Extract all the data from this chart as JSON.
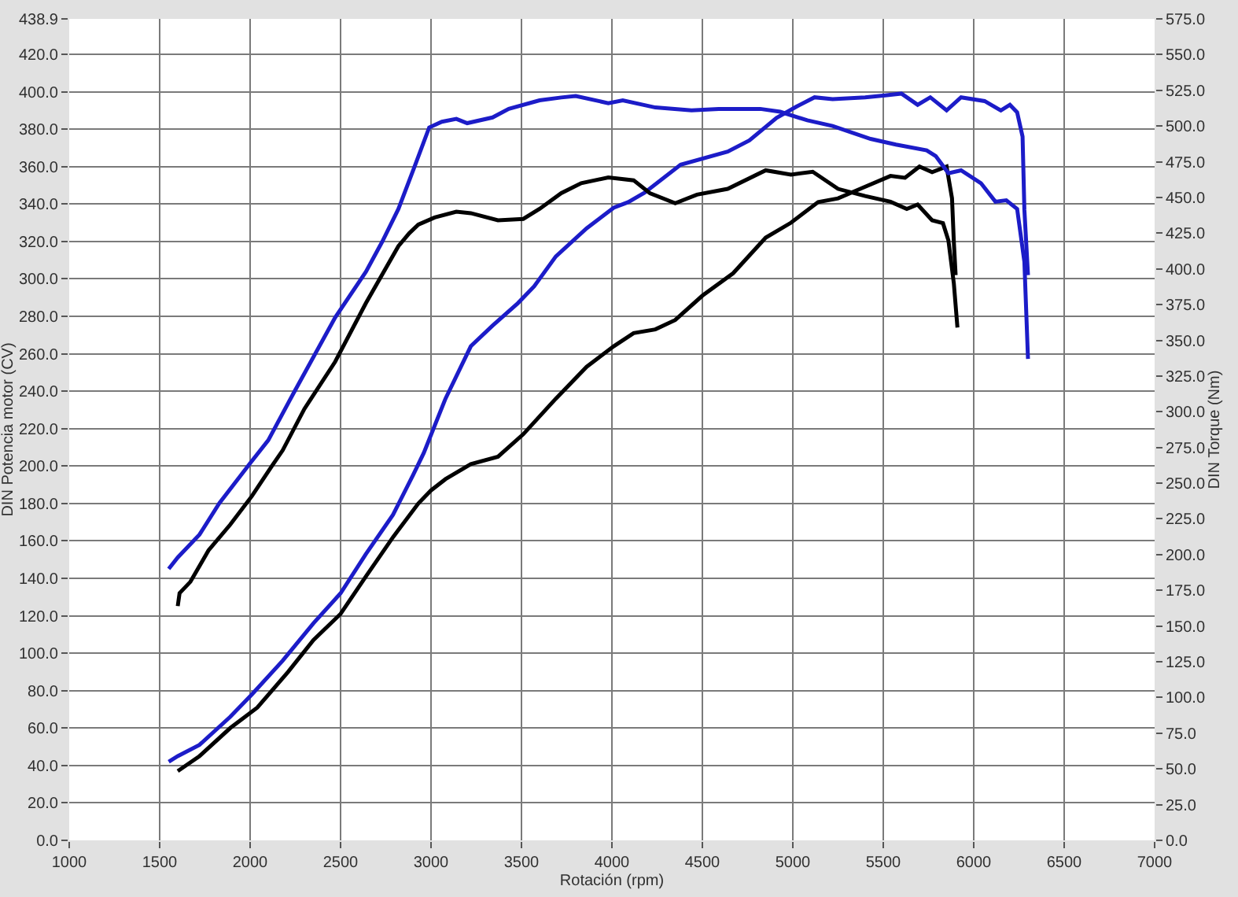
{
  "chart_data": {
    "type": "line",
    "xlabel": "Rotación (rpm)",
    "ylabel": "DIN Potencia motor (CV)",
    "y2label": "DIN Torque (Nm)",
    "xlim": [
      1000,
      7000
    ],
    "xticks": [
      1000,
      1500,
      2000,
      2500,
      3000,
      3500,
      4000,
      4500,
      5000,
      5500,
      6000,
      6500,
      7000
    ],
    "ylim": [
      0,
      438.9
    ],
    "yticks": [
      {
        "value": 0,
        "label": "0.0"
      },
      {
        "value": 20,
        "label": "20.0"
      },
      {
        "value": 40,
        "label": "40.0"
      },
      {
        "value": 60,
        "label": "60.0"
      },
      {
        "value": 80,
        "label": "80.0"
      },
      {
        "value": 100,
        "label": "100.0"
      },
      {
        "value": 120,
        "label": "120.0"
      },
      {
        "value": 140,
        "label": "140.0"
      },
      {
        "value": 160,
        "label": "160.0"
      },
      {
        "value": 180,
        "label": "180.0"
      },
      {
        "value": 200,
        "label": "200.0"
      },
      {
        "value": 220,
        "label": "220.0"
      },
      {
        "value": 240,
        "label": "240.0"
      },
      {
        "value": 260,
        "label": "260.0"
      },
      {
        "value": 280,
        "label": "280.0"
      },
      {
        "value": 300,
        "label": "300.0"
      },
      {
        "value": 320,
        "label": "320.0"
      },
      {
        "value": 340,
        "label": "340.0"
      },
      {
        "value": 360,
        "label": "360.0"
      },
      {
        "value": 380,
        "label": "380.0"
      },
      {
        "value": 400,
        "label": "400.0"
      },
      {
        "value": 420,
        "label": "420.0"
      },
      {
        "value": 438.9,
        "label": "438.9"
      }
    ],
    "y2lim": [
      0,
      575
    ],
    "y2ticks": [
      {
        "value": 0,
        "label": "0.0"
      },
      {
        "value": 25,
        "label": "25.0"
      },
      {
        "value": 50,
        "label": "50.0"
      },
      {
        "value": 75,
        "label": "75.0"
      },
      {
        "value": 100,
        "label": "100.0"
      },
      {
        "value": 125,
        "label": "125.0"
      },
      {
        "value": 150,
        "label": "150.0"
      },
      {
        "value": 175,
        "label": "175.0"
      },
      {
        "value": 200,
        "label": "200.0"
      },
      {
        "value": 225,
        "label": "225.0"
      },
      {
        "value": 250,
        "label": "250.0"
      },
      {
        "value": 275,
        "label": "275.0"
      },
      {
        "value": 300,
        "label": "300.0"
      },
      {
        "value": 325,
        "label": "325.0"
      },
      {
        "value": 350,
        "label": "350.0"
      },
      {
        "value": 375,
        "label": "375.0"
      },
      {
        "value": 400,
        "label": "400.0"
      },
      {
        "value": 425,
        "label": "425.0"
      },
      {
        "value": 450,
        "label": "450.0"
      },
      {
        "value": 475,
        "label": "475.0"
      },
      {
        "value": 500,
        "label": "500.0"
      },
      {
        "value": 525,
        "label": "525.0"
      },
      {
        "value": 550,
        "label": "550.0"
      },
      {
        "value": 575,
        "label": "575.0"
      }
    ],
    "grid": true,
    "series": [
      {
        "color": "#1c1cc8",
        "x": [
          1550,
          1600,
          1720,
          1890,
          2010,
          2180,
          2350,
          2500,
          2640,
          2790,
          2900,
          2960,
          3080,
          3220,
          3340,
          3480,
          3570,
          3690,
          3860,
          4010,
          4090,
          4180,
          4380,
          4640,
          4760,
          4910,
          5020,
          5120,
          5220,
          5400,
          5510,
          5600,
          5690,
          5760,
          5850,
          5930,
          6060,
          6150,
          6200,
          6240,
          6270,
          6280,
          6300
        ],
        "values": [
          42,
          45,
          51,
          66,
          78,
          96,
          116,
          132,
          153,
          174,
          195,
          207,
          236,
          264,
          275,
          287,
          296,
          312,
          327,
          338,
          341,
          346,
          361,
          368,
          374,
          386,
          392,
          397,
          396,
          397,
          398,
          399,
          393,
          397,
          390,
          397,
          395,
          390,
          393,
          389,
          376,
          337,
          302
        ]
      },
      {
        "color": "#1c1cc8",
        "axis": "y2",
        "x": [
          1550,
          1600,
          1720,
          1830,
          2000,
          2100,
          2240,
          2470,
          2640,
          2730,
          2820,
          2910,
          2990,
          3060,
          3140,
          3200,
          3340,
          3430,
          3600,
          3720,
          3800,
          3980,
          4060,
          4240,
          4440,
          4590,
          4820,
          4930,
          5080,
          5220,
          5430,
          5570,
          5740,
          5790,
          5860,
          5930,
          6040,
          6120,
          6180,
          6240,
          6280,
          6300
        ],
        "values": [
          190,
          198,
          214,
          236,
          264,
          280,
          313,
          366,
          398,
          419,
          442,
          472,
          499,
          503,
          505,
          502,
          506,
          512,
          518,
          520,
          521,
          516,
          518,
          513,
          511,
          512,
          512,
          510,
          504,
          500,
          491,
          487,
          483,
          479,
          467,
          469,
          460,
          447,
          448,
          442,
          405,
          337
        ]
      },
      {
        "color": "#000000",
        "x": [
          1600,
          1720,
          1890,
          2040,
          2210,
          2350,
          2500,
          2640,
          2790,
          2930,
          3000,
          3080,
          3220,
          3370,
          3510,
          3690,
          3860,
          4010,
          4120,
          4240,
          4350,
          4500,
          4670,
          4850,
          4990,
          5140,
          5250,
          5370,
          5540,
          5620,
          5700,
          5770,
          5850,
          5880,
          5890,
          5900
        ],
        "values": [
          37,
          45,
          60,
          71,
          90,
          107,
          121,
          141,
          162,
          180,
          187,
          193,
          201,
          205,
          217,
          236,
          253,
          264,
          271,
          273,
          278,
          291,
          303,
          322,
          330,
          341,
          343,
          348,
          355,
          354,
          360,
          357,
          360,
          343,
          320,
          302
        ]
      },
      {
        "color": "#000000",
        "axis": "y2",
        "x": [
          1600,
          1610,
          1670,
          1770,
          1890,
          2010,
          2120,
          2180,
          2300,
          2470,
          2640,
          2820,
          2880,
          2930,
          3020,
          3140,
          3220,
          3370,
          3510,
          3600,
          3720,
          3830,
          3980,
          4120,
          4210,
          4350,
          4470,
          4640,
          4850,
          4990,
          5110,
          5250,
          5400,
          5540,
          5630,
          5690,
          5770,
          5830,
          5860,
          5890,
          5910
        ],
        "values": [
          164,
          173,
          181,
          203,
          221,
          241,
          262,
          273,
          302,
          335,
          376,
          416,
          425,
          431,
          436,
          440,
          439,
          434,
          435,
          442,
          453,
          460,
          464,
          462,
          453,
          446,
          452,
          456,
          469,
          466,
          468,
          456,
          451,
          447,
          442,
          445,
          434,
          432,
          420,
          390,
          359
        ]
      }
    ]
  }
}
